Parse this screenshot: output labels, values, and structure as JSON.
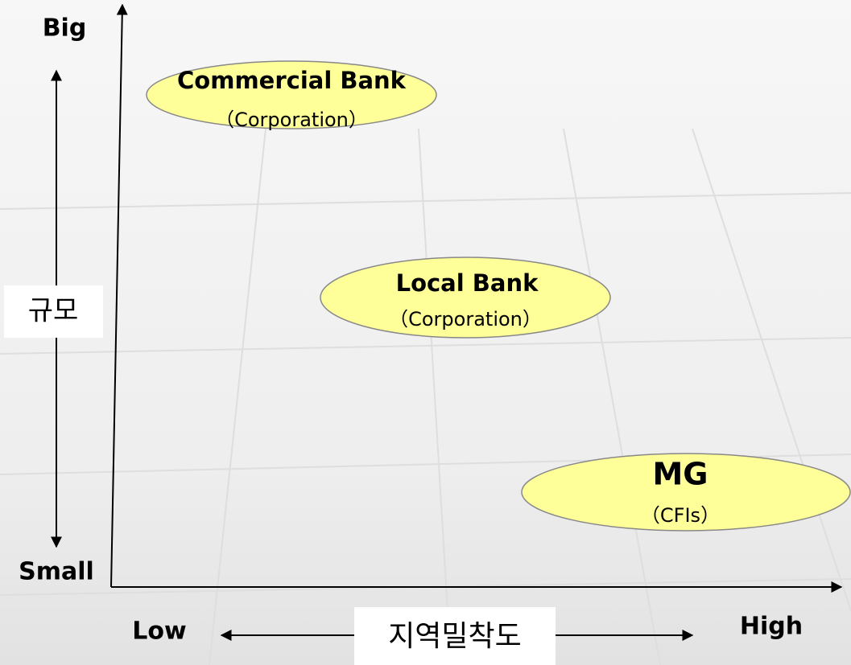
{
  "axes": {
    "y_top": "Big",
    "y_bottom": "Small",
    "y_title": "규모",
    "x_left": "Low",
    "x_right": "High",
    "x_title": "지역밀착도"
  },
  "nodes": [
    {
      "label": "Commercial Bank",
      "sublabel": "（Corporation）"
    },
    {
      "label": "Local Bank",
      "sublabel": "（Corporation）"
    },
    {
      "label": "MG",
      "sublabel": "（CFIs）"
    }
  ]
}
